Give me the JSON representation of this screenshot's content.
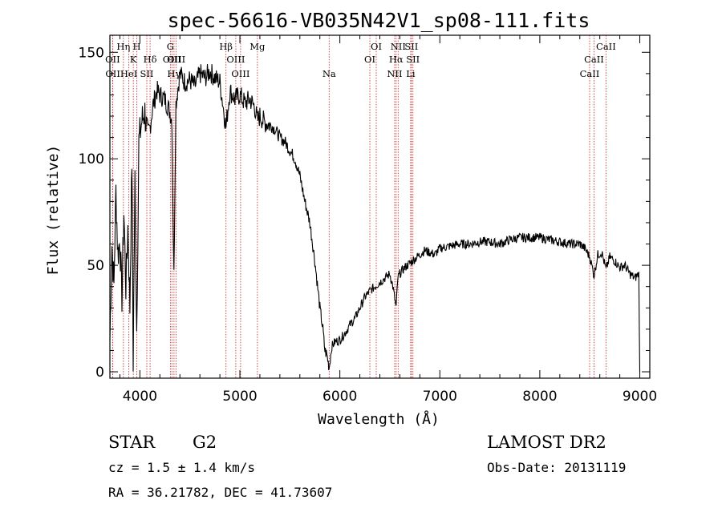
{
  "chart_data": {
    "type": "line",
    "title": "spec-56616-VB035N42V1_sp08-111.fits",
    "xlabel": "Wavelength (Å)",
    "ylabel": "Flux (relative)",
    "xlim": [
      3700,
      9100
    ],
    "ylim": [
      -3,
      158
    ],
    "xticks": [
      4000,
      5000,
      6000,
      7000,
      8000,
      9000
    ],
    "yticks": [
      0,
      50,
      100,
      150
    ],
    "grid": false,
    "series": [
      {
        "x": [
          3700,
          3720,
          3740,
          3760,
          3780,
          3800,
          3820,
          3840,
          3860,
          3880,
          3900,
          3920,
          3933,
          3950,
          3968,
          3990,
          4020,
          4050,
          4080,
          4102,
          4130,
          4170,
          4200,
          4250,
          4300,
          4320,
          4340,
          4360,
          4400,
          4450,
          4500,
          4550,
          4600,
          4650,
          4700,
          4750,
          4800,
          4861,
          4900,
          4950,
          5000,
          5050,
          5100,
          5150,
          5175,
          5200,
          5250,
          5300,
          5350,
          5400,
          5450,
          5500,
          5550,
          5600,
          5650,
          5700,
          5750,
          5800,
          5830,
          5850,
          5870,
          5893,
          5920,
          5950,
          6000,
          6050,
          6100,
          6150,
          6200,
          6250,
          6300,
          6350,
          6400,
          6450,
          6500,
          6530,
          6563,
          6580,
          6600,
          6650,
          6700,
          6750,
          6800,
          6850,
          6900,
          6950,
          7000,
          7100,
          7200,
          7300,
          7400,
          7500,
          7600,
          7700,
          7800,
          7900,
          8000,
          8100,
          8200,
          8300,
          8400,
          8450,
          8498,
          8520,
          8542,
          8580,
          8620,
          8662,
          8700,
          8750,
          8800,
          8850,
          8900,
          8950,
          8990,
          9000
        ],
        "y": [
          15,
          60,
          40,
          85,
          55,
          62,
          35,
          75,
          40,
          68,
          30,
          100,
          5,
          90,
          20,
          108,
          118,
          122,
          108,
          115,
          125,
          132,
          130,
          128,
          122,
          118,
          45,
          126,
          140,
          136,
          137,
          134,
          140,
          138,
          141,
          138,
          136,
          115,
          132,
          128,
          130,
          126,
          128,
          124,
          118,
          120,
          117,
          116,
          114,
          110,
          108,
          104,
          100,
          92,
          80,
          70,
          52,
          30,
          20,
          10,
          8,
          2,
          12,
          14,
          15,
          18,
          22,
          25,
          30,
          35,
          38,
          40,
          42,
          44,
          46,
          40,
          30,
          44,
          46,
          49,
          51,
          53,
          55,
          57,
          56,
          55,
          58,
          59,
          60,
          60,
          61,
          61,
          60,
          62,
          63,
          63,
          63,
          62,
          61,
          60,
          60,
          58,
          54,
          50,
          45,
          55,
          56,
          48,
          54,
          52,
          49,
          50,
          46,
          44,
          46,
          0
        ]
      }
    ],
    "line_markers": [
      {
        "name": "OII",
        "wavelength": 3727,
        "row": 2
      },
      {
        "name": "OII",
        "wavelength": 3729,
        "row": 3
      },
      {
        "name": "Hη",
        "wavelength": 3835,
        "row": 1
      },
      {
        "name": "HeI",
        "wavelength": 3889,
        "row": 3
      },
      {
        "name": "K",
        "wavelength": 3934,
        "row": 2
      },
      {
        "name": "H",
        "wavelength": 3969,
        "row": 1
      },
      {
        "name": "SII",
        "wavelength": 4069,
        "row": 3
      },
      {
        "name": "Hδ",
        "wavelength": 4102,
        "row": 2
      },
      {
        "name": "G",
        "wavelength": 4305,
        "row": 1
      },
      {
        "name": "OIII",
        "wavelength": 4320,
        "row": 2
      },
      {
        "name": "Hγ",
        "wavelength": 4341,
        "row": 3
      },
      {
        "name": "OIII",
        "wavelength": 4363,
        "row": 2
      },
      {
        "name": "Hβ",
        "wavelength": 4861,
        "row": 1
      },
      {
        "name": "OIII",
        "wavelength": 4959,
        "row": 2
      },
      {
        "name": "OIII",
        "wavelength": 5007,
        "row": 3
      },
      {
        "name": "Mg",
        "wavelength": 5175,
        "row": 1
      },
      {
        "name": "Na",
        "wavelength": 5893,
        "row": 3
      },
      {
        "name": "OI",
        "wavelength": 6300,
        "row": 2
      },
      {
        "name": "OI",
        "wavelength": 6364,
        "row": 1
      },
      {
        "name": "NII",
        "wavelength": 6548,
        "row": 3
      },
      {
        "name": "Hα",
        "wavelength": 6563,
        "row": 2
      },
      {
        "name": "NII",
        "wavelength": 6583,
        "row": 1
      },
      {
        "name": "Li",
        "wavelength": 6708,
        "row": 3
      },
      {
        "name": "SII",
        "wavelength": 6716,
        "row": 1
      },
      {
        "name": "SII",
        "wavelength": 6731,
        "row": 2
      },
      {
        "name": "CaII",
        "wavelength": 8498,
        "row": 3
      },
      {
        "name": "CaII",
        "wavelength": 8542,
        "row": 2
      },
      {
        "name": "CaII",
        "wavelength": 8662,
        "row": 1
      }
    ]
  },
  "info": {
    "object_class": "STAR",
    "subclass": "G2",
    "survey": "LAMOST DR2",
    "redshift_text": "cz = 1.5 ± 1.4 km/s",
    "obs_date": "Obs-Date: 20131119",
    "coords_text": "RA =  36.21782, DEC =  41.73607"
  },
  "colors": {
    "line_marker": "#cc3333",
    "spectrum": "#000000",
    "axes": "#000000"
  }
}
